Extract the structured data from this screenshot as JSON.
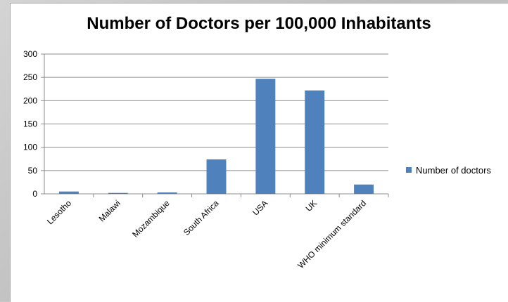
{
  "chart_data": {
    "type": "bar",
    "title": "Number of Doctors per 100,000 Inhabitants",
    "categories": [
      "Lesotho",
      "Malawi",
      "Mozambique",
      "South Africa",
      "USA",
      "UK",
      "WHO minimum standard"
    ],
    "series": [
      {
        "name": "Number of doctors",
        "color": "#4f81bd",
        "values": [
          5,
          2,
          3,
          74,
          247,
          222,
          20
        ]
      }
    ],
    "ylim": [
      0,
      300
    ],
    "yticks": [
      0,
      50,
      100,
      150,
      200,
      250,
      300
    ],
    "grid": true,
    "legend": "right"
  }
}
